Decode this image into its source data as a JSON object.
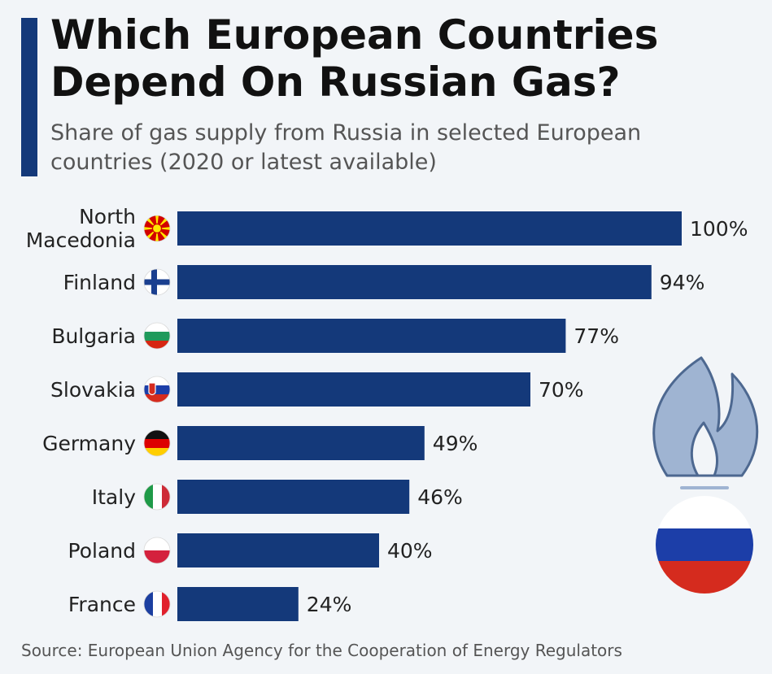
{
  "chart_data": {
    "type": "bar",
    "orientation": "horizontal",
    "title": "Which European Countries Depend On Russian Gas?",
    "subtitle": "Share of gas supply from Russia in selected European countries (2020 or latest available)",
    "categories": [
      "North Macedonia",
      "Finland",
      "Bulgaria",
      "Slovakia",
      "Germany",
      "Italy",
      "Poland",
      "France"
    ],
    "values": [
      100,
      94,
      77,
      70,
      49,
      46,
      40,
      24
    ],
    "value_labels": [
      "100%",
      "94%",
      "77%",
      "70%",
      "49%",
      "46%",
      "40%",
      "24%"
    ],
    "flags": [
      "north-macedonia-flag",
      "finland-flag",
      "bulgaria-flag",
      "slovakia-flag",
      "germany-flag",
      "italy-flag",
      "poland-flag",
      "france-flag"
    ],
    "xlim": [
      0,
      100
    ],
    "bar_color": "#14397a",
    "grid": false
  },
  "decoration": {
    "gas_flame_icon": "gas-flame-icon",
    "russia_flag_icon": "russia-flag-icon",
    "flame_color": "#9fb4d2",
    "russia_colors": [
      "#ffffff",
      "#1c3ea8",
      "#d52b1e"
    ]
  },
  "source": "Source: European Union Agency for the Cooperation of Energy Regulators"
}
